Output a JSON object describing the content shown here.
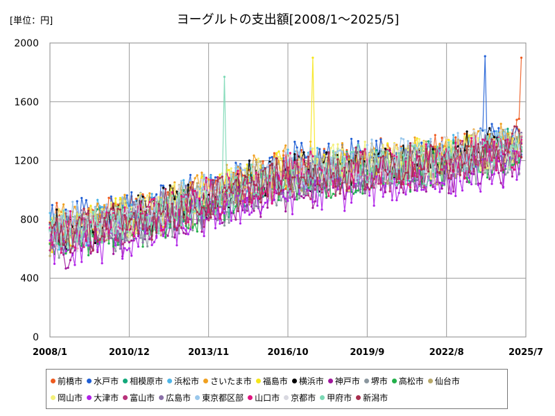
{
  "chart_data": {
    "type": "line",
    "title": "ヨーグルトの支出額[2008/1～2025/5]",
    "unit_label": "[単位：円]",
    "xlabel": "",
    "ylabel": "",
    "x_range": [
      "2008/1",
      "2025/7"
    ],
    "x_ticks": [
      "2008/1",
      "2010/12",
      "2013/11",
      "2016/10",
      "2019/9",
      "2022/8",
      "2025/7"
    ],
    "ylim": [
      0,
      2000
    ],
    "y_ticks": [
      0,
      400,
      800,
      1200,
      1600,
      2000
    ],
    "grid": true,
    "legend_position": "bottom",
    "approximate_trend": {
      "dates": [
        "2008/1",
        "2010/12",
        "2013/11",
        "2016/10",
        "2019/9",
        "2022/8",
        "2025/5"
      ],
      "mean": [
        700,
        790,
        940,
        1110,
        1150,
        1200,
        1300
      ]
    },
    "series": [
      {
        "name": "前橋市",
        "color": "#ee5a1e",
        "offset": 40,
        "peak": "2025/5",
        "peak_value": 1900
      },
      {
        "name": "水戸市",
        "color": "#1f5fd6",
        "offset": 60,
        "peak": "2024/1",
        "peak_value": 1910
      },
      {
        "name": "相模原市",
        "color": "#12a87a",
        "offset": -20
      },
      {
        "name": "浜松市",
        "color": "#4fb6e8",
        "offset": 30
      },
      {
        "name": "さいたま市",
        "color": "#f0a020",
        "offset": 50
      },
      {
        "name": "福島市",
        "color": "#f6e619",
        "offset": 20,
        "peak": "2017/9",
        "peak_value": 1900
      },
      {
        "name": "横浜市",
        "color": "#000000",
        "offset": 10
      },
      {
        "name": "神戸市",
        "color": "#a0169c",
        "offset": -90
      },
      {
        "name": "堺市",
        "color": "#8a969e",
        "offset": -60
      },
      {
        "name": "高松市",
        "color": "#22b04a",
        "offset": -50
      },
      {
        "name": "仙台市",
        "color": "#b8a868",
        "offset": 0
      },
      {
        "name": "岡山市",
        "color": "#f3f07a",
        "offset": 20
      },
      {
        "name": "大津市",
        "color": "#b022e8",
        "offset": -120
      },
      {
        "name": "富山市",
        "color": "#b8337a",
        "offset": -30
      },
      {
        "name": "広島市",
        "color": "#8a70a8",
        "offset": -20
      },
      {
        "name": "東京都区部",
        "color": "#9ac8ec",
        "offset": 40
      },
      {
        "name": "山口市",
        "color": "#e0147e",
        "offset": -10
      },
      {
        "name": "京都市",
        "color": "#d8d8e0",
        "offset": 10
      },
      {
        "name": "甲府市",
        "color": "#7ad8b4",
        "offset": 0,
        "peak": "2014/6",
        "peak_value": 1770
      },
      {
        "name": "新潟市",
        "color": "#a82e4e",
        "offset": -10
      }
    ]
  }
}
